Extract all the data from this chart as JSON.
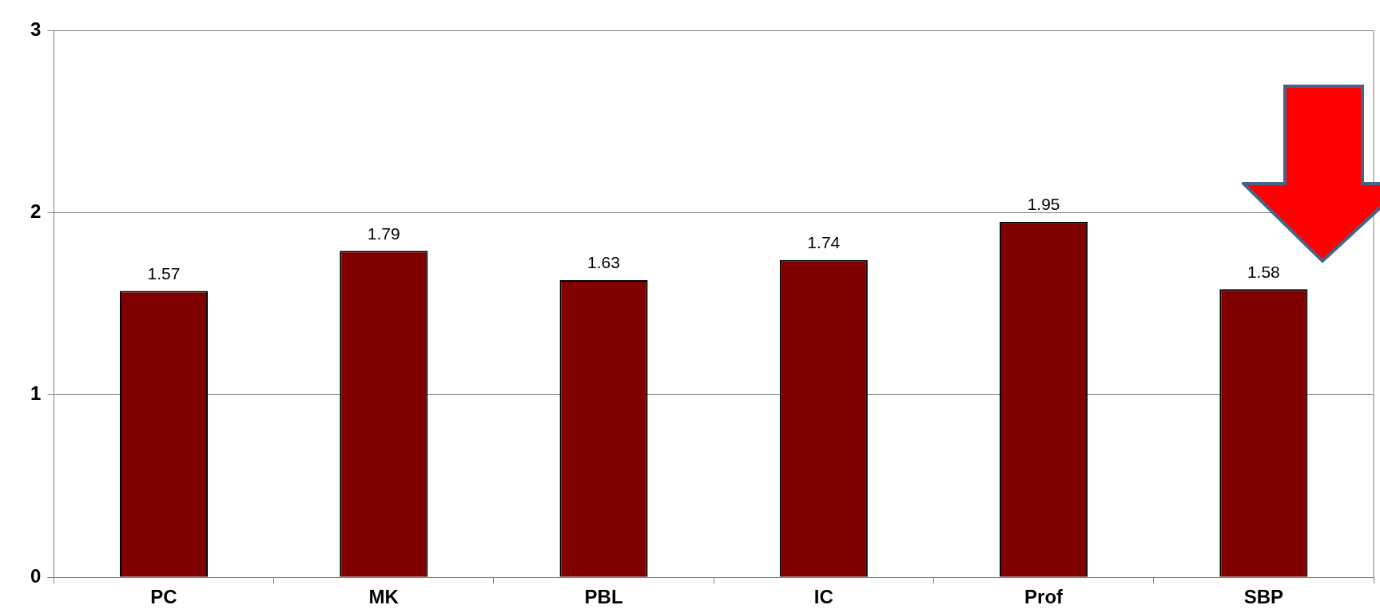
{
  "chart_data": {
    "type": "bar",
    "categories": [
      "PC",
      "MK",
      "PBL",
      "IC",
      "Prof",
      "SBP"
    ],
    "values": [
      1.57,
      1.79,
      1.63,
      1.74,
      1.95,
      1.58
    ],
    "color": "#800000",
    "ylim": [
      0,
      3
    ],
    "yticks": [
      0,
      1,
      2,
      3
    ],
    "grid": "y",
    "data_labels": true,
    "legend": false
  }
}
